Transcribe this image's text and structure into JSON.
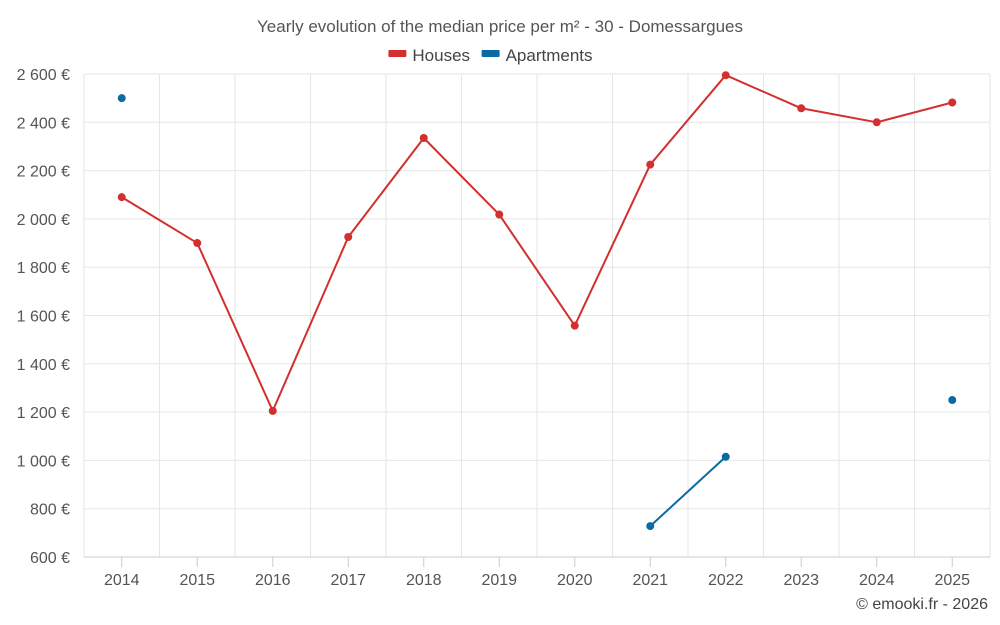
{
  "chart_data": {
    "type": "line",
    "title": "Yearly evolution of the median price per m² - 30 - Domessargues",
    "categories": [
      "2014",
      "2015",
      "2016",
      "2017",
      "2018",
      "2019",
      "2020",
      "2021",
      "2022",
      "2023",
      "2024",
      "2025"
    ],
    "ylim": [
      600,
      2600
    ],
    "yticks": [
      600,
      800,
      1000,
      1200,
      1400,
      1600,
      1800,
      2000,
      2200,
      2400,
      2600
    ],
    "ytick_labels": [
      "600 €",
      "800 €",
      "1 000 €",
      "1 200 €",
      "1 400 €",
      "1 600 €",
      "1 800 €",
      "2 000 €",
      "2 200 €",
      "2 400 €",
      "2 600 €"
    ],
    "grid": true,
    "legend_position": "top-center",
    "series": [
      {
        "name": "Houses",
        "color": "#d32f2f",
        "values": [
          2090,
          1900,
          1205,
          1925,
          2335,
          2018,
          1558,
          2225,
          2595,
          2458,
          2400,
          2482
        ]
      },
      {
        "name": "Apartments",
        "color": "#0a6aa1",
        "values": [
          2500,
          null,
          null,
          null,
          null,
          null,
          null,
          728,
          1015,
          null,
          null,
          1250
        ]
      }
    ]
  },
  "credit": "© emooki.fr - 2026"
}
